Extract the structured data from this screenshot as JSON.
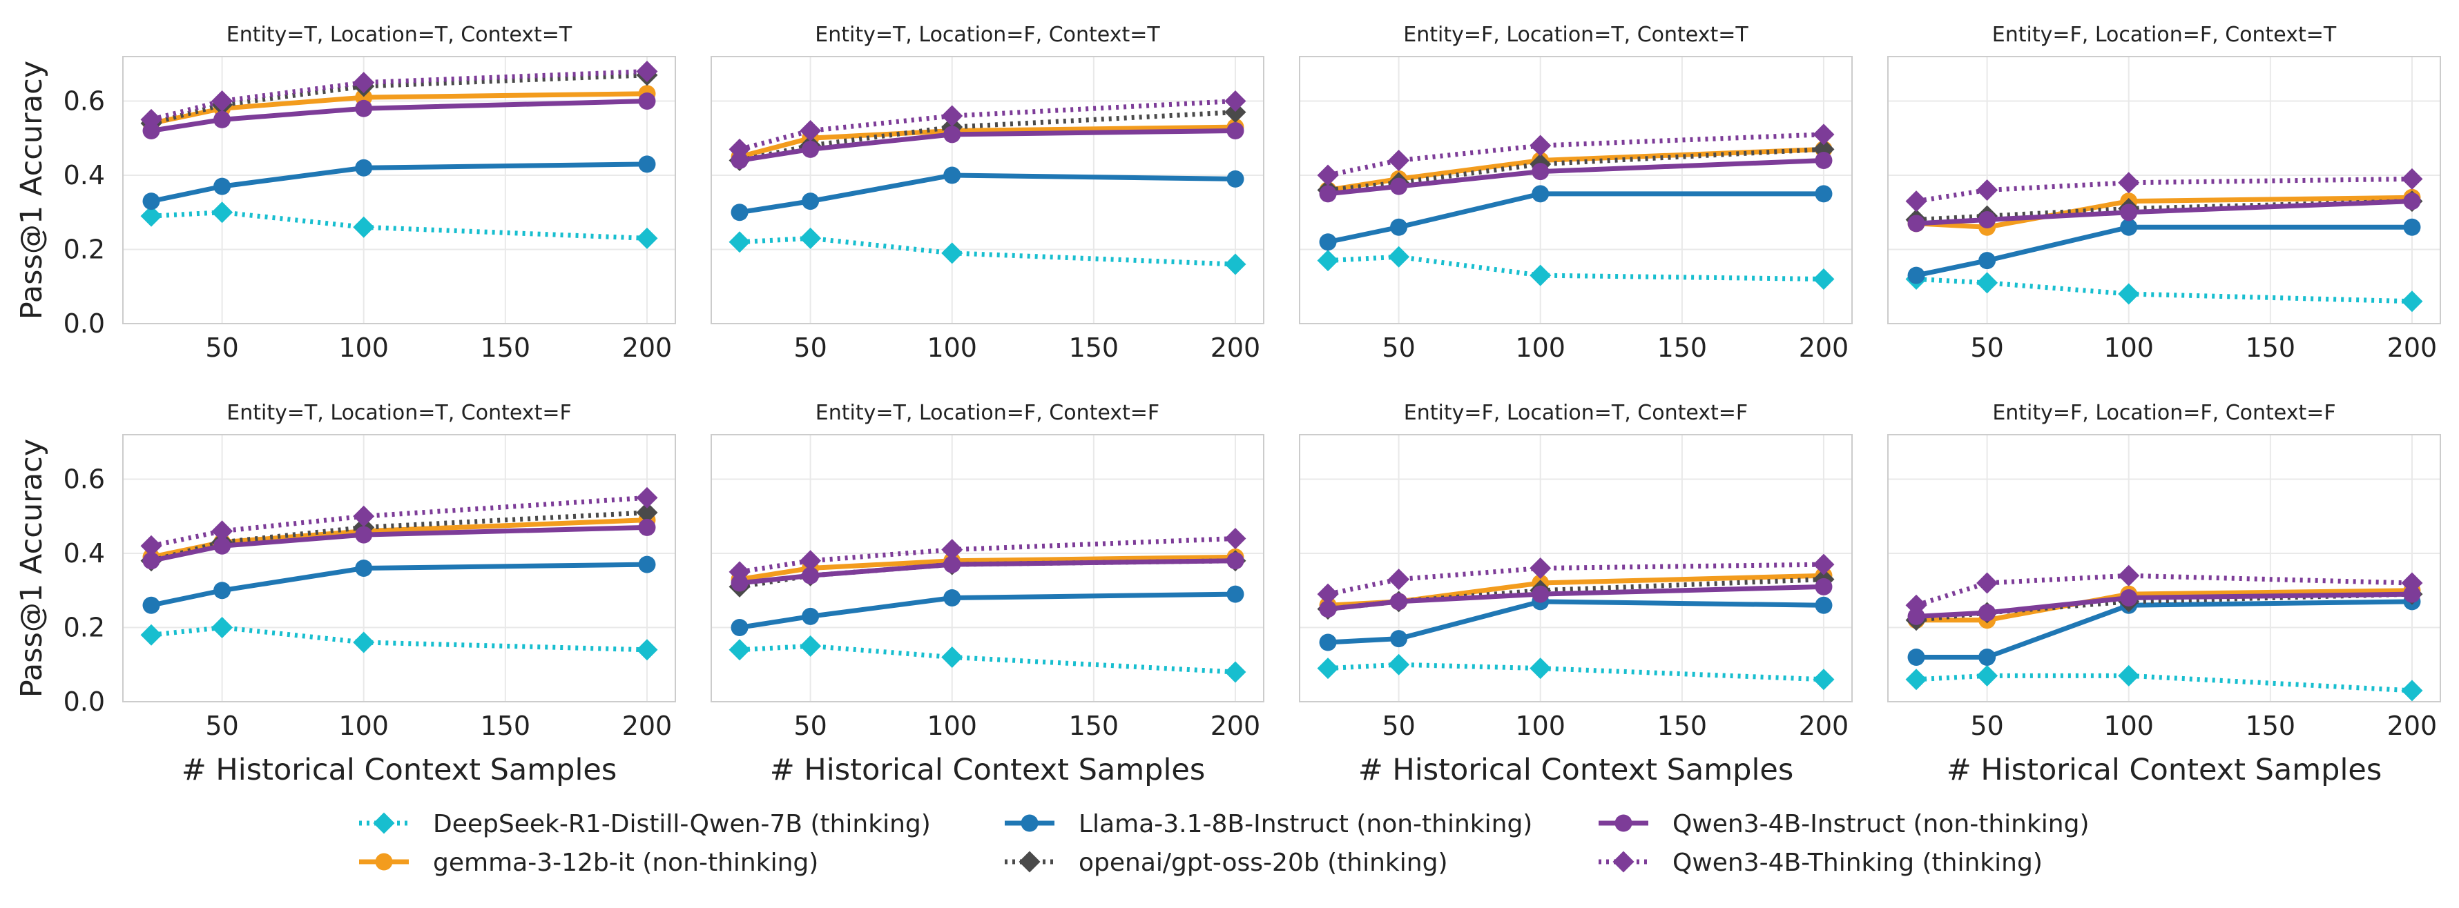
{
  "chart_data": {
    "type": "line",
    "layout": "2x4 small multiples",
    "x": [
      25,
      50,
      100,
      200
    ],
    "xticks": [
      50,
      100,
      150,
      200
    ],
    "xlim": [
      15,
      210
    ],
    "ylim": [
      0,
      0.72
    ],
    "yticks": [
      "0.0",
      "0.2",
      "0.4",
      "0.6"
    ],
    "ylabel": "Pass@1 Accuracy",
    "xlabel": "# Historical Context Samples",
    "legend_position": "bottom",
    "series_meta": [
      {
        "name": "DeepSeek-R1-Distill-Qwen-7B (thinking)",
        "color": "#17becf",
        "dash": "dotted",
        "marker": "diamond"
      },
      {
        "name": "gemma-3-12b-it (non-thinking)",
        "color": "#f39c1d",
        "dash": "solid",
        "marker": "circle"
      },
      {
        "name": "Llama-3.1-8B-Instruct (non-thinking)",
        "color": "#1f77b4",
        "dash": "solid",
        "marker": "circle"
      },
      {
        "name": "openai/gpt-oss-20b (thinking)",
        "color": "#4a4a4a",
        "dash": "dotted",
        "marker": "diamond"
      },
      {
        "name": "Qwen3-4B-Instruct (non-thinking)",
        "color": "#7d3c98",
        "dash": "solid",
        "marker": "circle"
      },
      {
        "name": "Qwen3-4B-Thinking (thinking)",
        "color": "#7d3c98",
        "dash": "dotted",
        "marker": "diamond"
      }
    ],
    "panels": [
      {
        "title": "Entity=T, Location=T, Context=T",
        "values": [
          [
            0.29,
            0.3,
            0.26,
            0.23
          ],
          [
            0.54,
            0.58,
            0.61,
            0.62
          ],
          [
            0.33,
            0.37,
            0.42,
            0.43
          ],
          [
            0.54,
            0.59,
            0.64,
            0.67
          ],
          [
            0.52,
            0.55,
            0.58,
            0.6
          ],
          [
            0.55,
            0.6,
            0.65,
            0.68
          ]
        ]
      },
      {
        "title": "Entity=T, Location=F, Context=T",
        "values": [
          [
            0.22,
            0.23,
            0.19,
            0.16
          ],
          [
            0.45,
            0.5,
            0.52,
            0.53
          ],
          [
            0.3,
            0.33,
            0.4,
            0.39
          ],
          [
            0.44,
            0.48,
            0.53,
            0.57
          ],
          [
            0.44,
            0.47,
            0.51,
            0.52
          ],
          [
            0.47,
            0.52,
            0.56,
            0.6
          ]
        ]
      },
      {
        "title": "Entity=F, Location=T, Context=T",
        "values": [
          [
            0.17,
            0.18,
            0.13,
            0.12
          ],
          [
            0.36,
            0.39,
            0.44,
            0.47
          ],
          [
            0.22,
            0.26,
            0.35,
            0.35
          ],
          [
            0.36,
            0.38,
            0.43,
            0.47
          ],
          [
            0.35,
            0.37,
            0.41,
            0.44
          ],
          [
            0.4,
            0.44,
            0.48,
            0.51
          ]
        ]
      },
      {
        "title": "Entity=F, Location=F, Context=T",
        "values": [
          [
            0.12,
            0.11,
            0.08,
            0.06
          ],
          [
            0.27,
            0.26,
            0.33,
            0.34
          ],
          [
            0.13,
            0.17,
            0.26,
            0.26
          ],
          [
            0.28,
            0.29,
            0.31,
            0.33
          ],
          [
            0.27,
            0.28,
            0.3,
            0.33
          ],
          [
            0.33,
            0.36,
            0.38,
            0.39
          ]
        ]
      },
      {
        "title": "Entity=T, Location=T, Context=F",
        "values": [
          [
            0.18,
            0.2,
            0.16,
            0.14
          ],
          [
            0.39,
            0.43,
            0.46,
            0.49
          ],
          [
            0.26,
            0.3,
            0.36,
            0.37
          ],
          [
            0.38,
            0.43,
            0.47,
            0.51
          ],
          [
            0.38,
            0.42,
            0.45,
            0.47
          ],
          [
            0.42,
            0.46,
            0.5,
            0.55
          ]
        ]
      },
      {
        "title": "Entity=T, Location=F, Context=F",
        "values": [
          [
            0.14,
            0.15,
            0.12,
            0.08
          ],
          [
            0.33,
            0.36,
            0.38,
            0.39
          ],
          [
            0.2,
            0.23,
            0.28,
            0.29
          ],
          [
            0.31,
            0.34,
            0.37,
            0.38
          ],
          [
            0.32,
            0.34,
            0.37,
            0.38
          ],
          [
            0.35,
            0.38,
            0.41,
            0.44
          ]
        ]
      },
      {
        "title": "Entity=F, Location=T, Context=F",
        "values": [
          [
            0.09,
            0.1,
            0.09,
            0.06
          ],
          [
            0.26,
            0.27,
            0.32,
            0.34
          ],
          [
            0.16,
            0.17,
            0.27,
            0.26
          ],
          [
            0.25,
            0.27,
            0.3,
            0.33
          ],
          [
            0.25,
            0.27,
            0.29,
            0.31
          ],
          [
            0.29,
            0.33,
            0.36,
            0.37
          ]
        ]
      },
      {
        "title": "Entity=F, Location=F, Context=F",
        "values": [
          [
            0.06,
            0.07,
            0.07,
            0.03
          ],
          [
            0.22,
            0.22,
            0.29,
            0.3
          ],
          [
            0.12,
            0.12,
            0.26,
            0.27
          ],
          [
            0.22,
            0.24,
            0.27,
            0.29
          ],
          [
            0.23,
            0.24,
            0.28,
            0.29
          ],
          [
            0.26,
            0.32,
            0.34,
            0.32
          ]
        ]
      }
    ]
  }
}
